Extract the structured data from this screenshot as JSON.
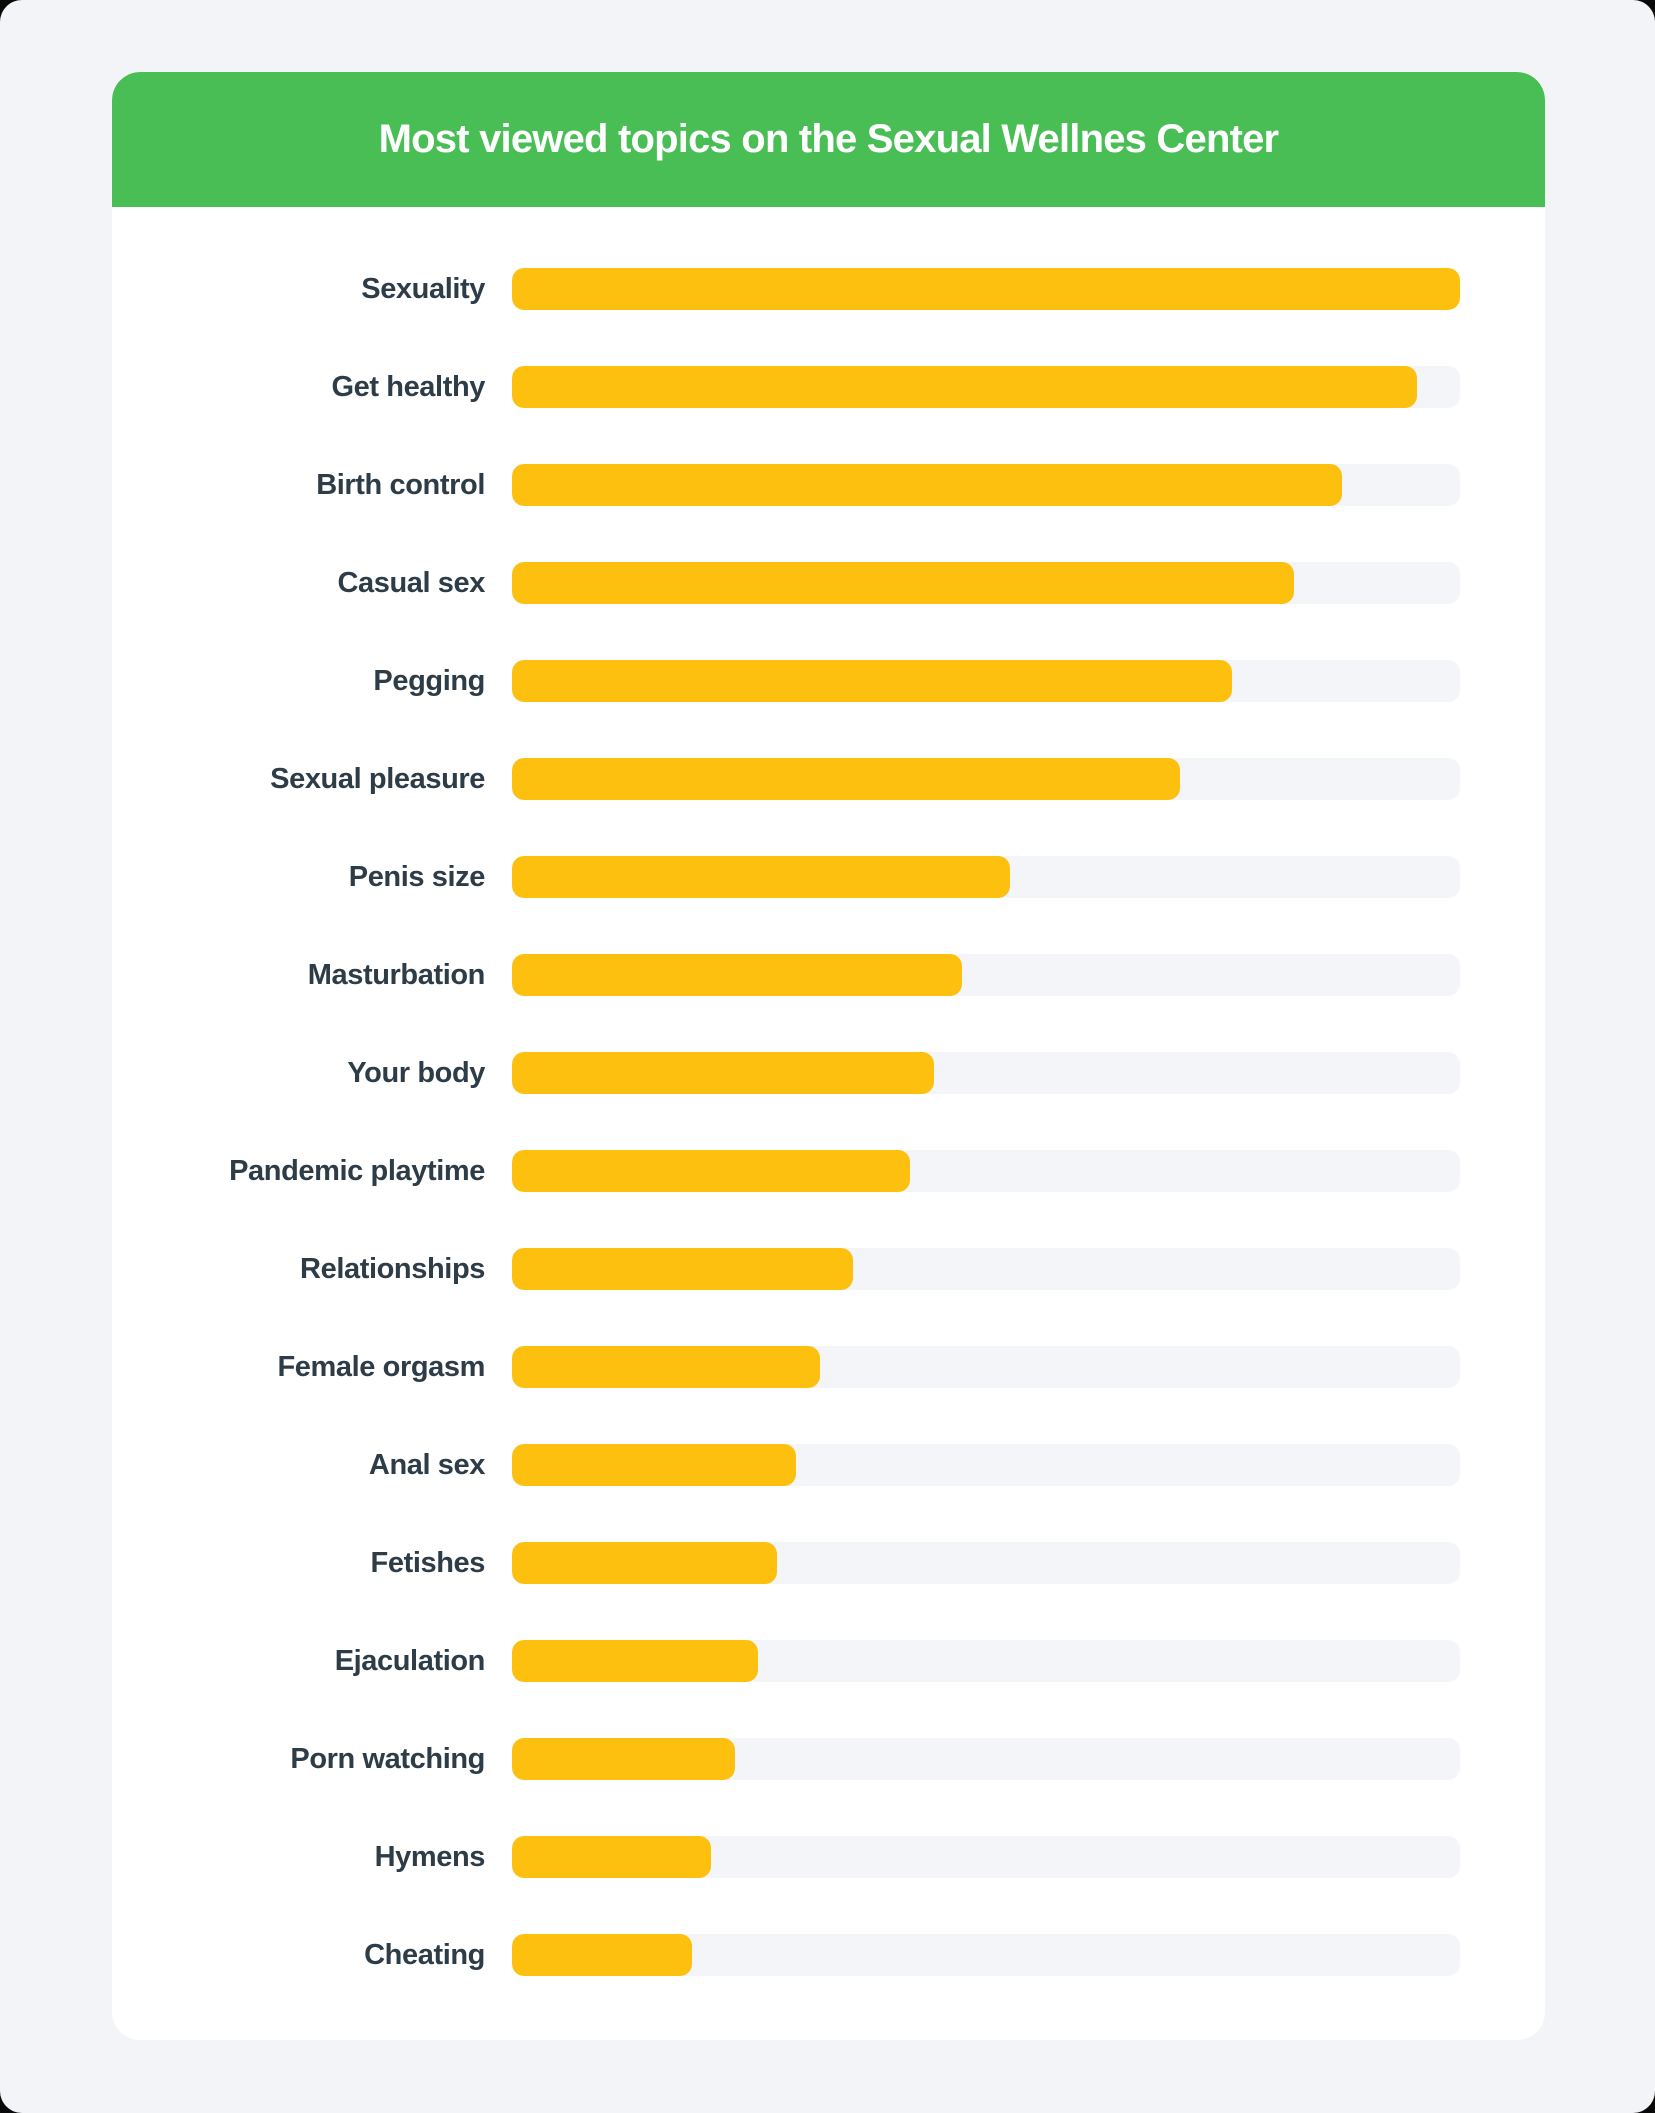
{
  "page": {
    "background_color": "#F2F4F8",
    "corner_backdrop_color": "#0A0A0A"
  },
  "card": {
    "background_color": "#FFFFFF"
  },
  "header": {
    "title": "Most viewed topics on the Sexual Wellnes Center",
    "background_color": "#48BE55",
    "text_color": "#FFFFFF"
  },
  "chart_data": {
    "type": "bar",
    "orientation": "horizontal",
    "title": "Most viewed topics on the Sexual Wellnes Center",
    "xlabel": "",
    "ylabel": "",
    "unit": "percent of longest bar (no axis shown in image)",
    "xlim": [
      0,
      100
    ],
    "grid": false,
    "legend": false,
    "bar_color": "#FDC00E",
    "track_color": "#F3F5F9",
    "label_color": "#2E3C48",
    "categories": [
      "Sexuality",
      "Get healthy",
      "Birth control",
      "Casual sex",
      "Pegging",
      "Sexual pleasure",
      "Penis size",
      "Masturbation",
      "Your body",
      "Pandemic playtime",
      "Relationships",
      "Female orgasm",
      "Anal sex",
      "Fetishes",
      "Ejaculation",
      "Porn watching",
      "Hymens",
      "Cheating"
    ],
    "values": [
      100,
      95.5,
      87.5,
      82.5,
      76,
      70.5,
      52.5,
      47.5,
      44.5,
      42,
      36,
      32.5,
      30,
      28,
      26,
      23.5,
      21,
      19
    ]
  }
}
